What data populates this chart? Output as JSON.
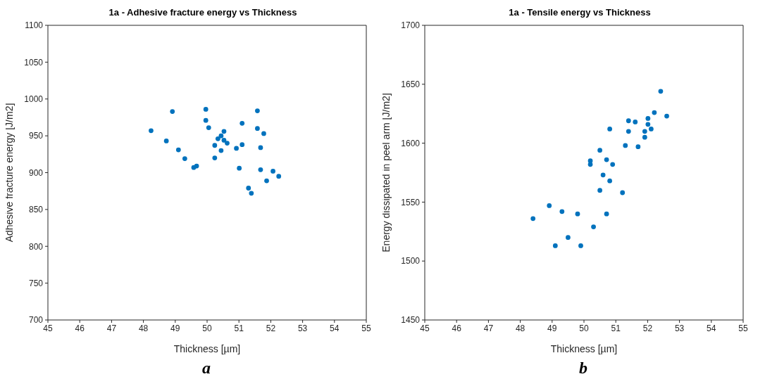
{
  "chart_data": [
    {
      "type": "scatter",
      "title": "1a - Adhesive fracture energy vs Thickness",
      "xlabel": "Thickness [µm]",
      "ylabel": "Adhesive fracture energy [J/m2]",
      "xlim": [
        45,
        55
      ],
      "xticks": [
        45,
        46,
        47,
        48,
        49,
        50,
        51,
        52,
        53,
        54,
        55
      ],
      "ylim": [
        700,
        1100
      ],
      "yticks": [
        700,
        750,
        800,
        850,
        900,
        950,
        1000,
        1050,
        1100
      ],
      "grid": false,
      "legend": false,
      "marker": "circle",
      "annotations": [
        "a"
      ],
      "series": [
        {
          "color": "#0072bd",
          "x": [
            48.24,
            48.91,
            48.72,
            49.1,
            49.3,
            49.58,
            49.67,
            49.96,
            49.96,
            50.05,
            50.24,
            50.24,
            50.34,
            50.44,
            50.53,
            50.53,
            50.63,
            50.44,
            50.92,
            51.1,
            51.1,
            51.01,
            51.58,
            51.58,
            51.78,
            51.68,
            51.68,
            52.07,
            52.25,
            51.87,
            51.3,
            51.39
          ],
          "values": [
            957,
            983,
            943,
            931,
            919,
            907,
            909,
            986,
            971,
            961,
            937,
            920,
            946,
            950,
            956,
            944,
            940,
            930,
            933,
            967,
            938,
            906,
            984,
            960,
            953,
            934,
            904,
            902,
            895,
            889,
            879,
            872
          ]
        }
      ]
    },
    {
      "type": "scatter",
      "title": "1a - Tensile energy vs Thickness",
      "xlabel": "Thickness [µm]",
      "ylabel": "Energy dissipated in peel arm [J/m2]",
      "xlim": [
        45,
        55
      ],
      "xticks": [
        45,
        46,
        47,
        48,
        49,
        50,
        51,
        52,
        53,
        54,
        55
      ],
      "ylim": [
        1450,
        1700
      ],
      "yticks": [
        1450,
        1500,
        1550,
        1600,
        1650,
        1700
      ],
      "grid": false,
      "legend": false,
      "marker": "circle",
      "annotations": [
        "b"
      ],
      "series": [
        {
          "color": "#0072bd",
          "x": [
            52.41,
            52.21,
            52.6,
            52.01,
            51.4,
            51.61,
            52.01,
            52.11,
            50.81,
            51.4,
            51.91,
            51.91,
            51.3,
            51.7,
            50.5,
            50.71,
            50.2,
            50.2,
            50.9,
            50.6,
            50.81,
            50.5,
            51.21,
            48.91,
            49.31,
            49.8,
            50.71,
            48.4,
            50.3,
            49.5,
            49.1,
            49.9
          ],
          "values": [
            1644,
            1626,
            1623,
            1621,
            1619,
            1618,
            1616,
            1612,
            1612,
            1610,
            1610,
            1605,
            1598,
            1597,
            1594,
            1586,
            1585,
            1582,
            1582,
            1573,
            1568,
            1560,
            1558,
            1547,
            1542,
            1540,
            1540,
            1536,
            1529,
            1520,
            1513,
            1513
          ]
        }
      ]
    }
  ]
}
